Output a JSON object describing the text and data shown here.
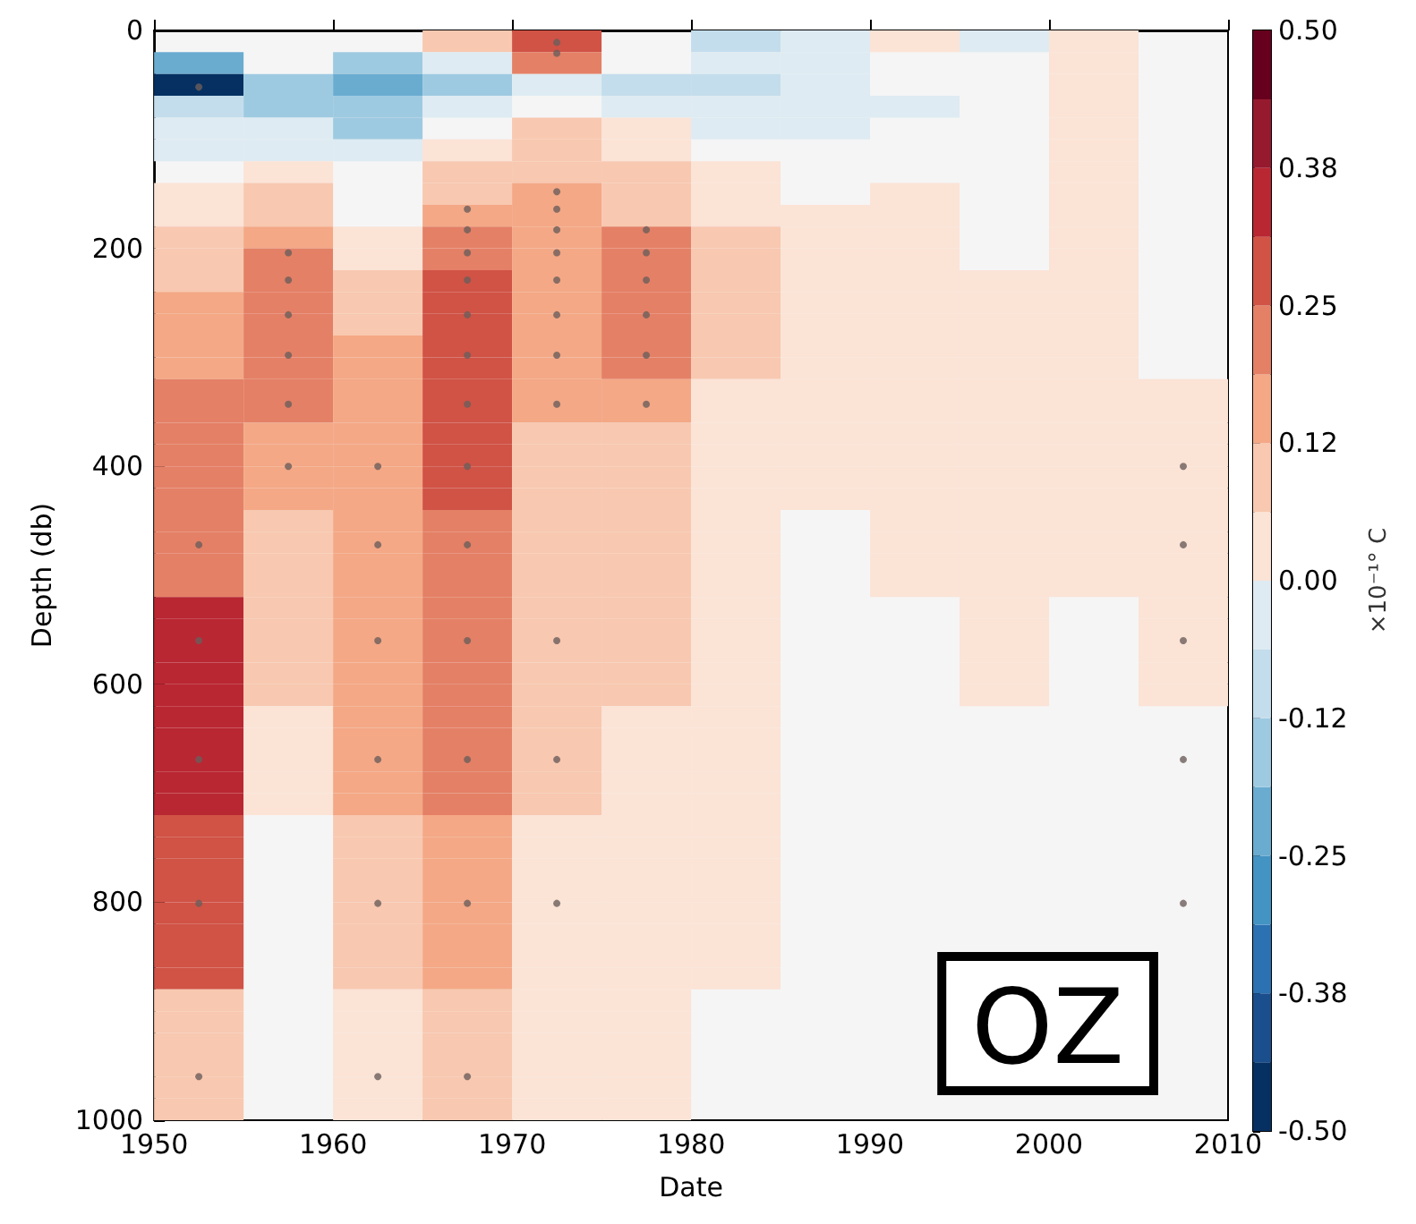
{
  "chart_data": {
    "type": "heatmap",
    "xlabel": "Date",
    "ylabel": "Depth (db)",
    "clabel": "×10⁻¹° C",
    "annotations": [
      "OZ"
    ],
    "x": [
      1952.5,
      1957.5,
      1962.5,
      1967.5,
      1972.5,
      1977.5,
      1982.5,
      1987.5,
      1992.5,
      1997.5,
      2002.5,
      2007.5
    ],
    "xlim": [
      1950,
      2010
    ],
    "xticks": [
      1950,
      1960,
      1970,
      1980,
      1990,
      2000,
      2010
    ],
    "ylim": [
      1000,
      0
    ],
    "yticks": [
      0,
      200,
      400,
      600,
      800,
      1000
    ],
    "clim": [
      -0.5,
      0.5
    ],
    "cticks": [
      {
        "value": -0.5,
        "label": "-0.50"
      },
      {
        "value": -0.375,
        "label": "-0.38"
      },
      {
        "value": -0.25,
        "label": "-0.25"
      },
      {
        "value": -0.125,
        "label": "-0.12"
      },
      {
        "value": 0,
        "label": "0.00"
      },
      {
        "value": 0.125,
        "label": "0.12"
      },
      {
        "value": 0.25,
        "label": "0.25"
      },
      {
        "value": 0.375,
        "label": "0.38"
      },
      {
        "value": 0.5,
        "label": "0.50"
      }
    ],
    "marker": "circle",
    "cells": [
      [
        null,
        null,
        null,
        0.09,
        0.28,
        null,
        -0.09,
        -0.03,
        0.03,
        -0.03,
        0.03,
        null
      ],
      [
        -0.22,
        null,
        -0.16,
        -0.03,
        0.22,
        null,
        -0.03,
        -0.03,
        null,
        null,
        0.03,
        null
      ],
      [
        -0.47,
        -0.16,
        -0.22,
        -0.16,
        -0.03,
        -0.09,
        -0.09,
        -0.03,
        null,
        null,
        0.03,
        null
      ],
      [
        -0.09,
        -0.16,
        -0.16,
        -0.03,
        null,
        -0.03,
        -0.03,
        -0.03,
        -0.03,
        null,
        0.03,
        null
      ],
      [
        -0.03,
        -0.03,
        -0.16,
        null,
        0.09,
        0.03,
        -0.03,
        -0.03,
        null,
        null,
        0.03,
        null
      ],
      [
        -0.03,
        -0.03,
        -0.03,
        0.03,
        0.09,
        0.03,
        null,
        null,
        null,
        null,
        0.03,
        null
      ],
      [
        null,
        0.03,
        null,
        0.09,
        0.09,
        0.09,
        0.03,
        null,
        null,
        null,
        0.03,
        null
      ],
      [
        0.03,
        0.09,
        null,
        0.09,
        0.16,
        0.09,
        0.03,
        null,
        0.03,
        null,
        0.03,
        null
      ],
      [
        0.03,
        0.09,
        null,
        0.16,
        0.16,
        0.09,
        0.03,
        0.03,
        0.03,
        null,
        0.03,
        null
      ],
      [
        0.09,
        0.16,
        0.03,
        0.22,
        0.16,
        0.22,
        0.09,
        0.03,
        0.03,
        null,
        0.03,
        null
      ],
      [
        0.09,
        0.22,
        0.03,
        0.22,
        0.16,
        0.22,
        0.09,
        0.03,
        0.03,
        null,
        0.03,
        null
      ],
      [
        0.09,
        0.22,
        0.09,
        0.28,
        0.16,
        0.22,
        0.09,
        0.03,
        0.03,
        0.03,
        0.03,
        null
      ],
      [
        0.16,
        0.22,
        0.09,
        0.28,
        0.16,
        0.22,
        0.09,
        0.03,
        0.03,
        0.03,
        0.03,
        null
      ],
      [
        0.16,
        0.22,
        0.09,
        0.28,
        0.16,
        0.22,
        0.09,
        0.03,
        0.03,
        0.03,
        0.03,
        null
      ],
      [
        0.16,
        0.22,
        0.16,
        0.28,
        0.16,
        0.22,
        0.09,
        0.03,
        0.03,
        0.03,
        0.03,
        null
      ],
      [
        0.16,
        0.22,
        0.16,
        0.28,
        0.16,
        0.22,
        0.09,
        0.03,
        0.03,
        0.03,
        0.03,
        null
      ],
      [
        0.22,
        0.22,
        0.16,
        0.28,
        0.16,
        0.16,
        0.03,
        0.03,
        0.03,
        0.03,
        0.03,
        0.03
      ],
      [
        0.22,
        0.22,
        0.16,
        0.28,
        0.16,
        0.16,
        0.03,
        0.03,
        0.03,
        0.03,
        0.03,
        0.03
      ],
      [
        0.22,
        0.16,
        0.16,
        0.28,
        0.09,
        0.09,
        0.03,
        0.03,
        0.03,
        0.03,
        0.03,
        0.03
      ],
      [
        0.22,
        0.16,
        0.16,
        0.28,
        0.09,
        0.09,
        0.03,
        0.03,
        0.03,
        0.03,
        0.03,
        0.03
      ],
      [
        0.22,
        0.16,
        0.16,
        0.28,
        0.09,
        0.09,
        0.03,
        0.03,
        0.03,
        0.03,
        0.03,
        0.03
      ],
      [
        0.22,
        0.16,
        0.16,
        0.28,
        0.09,
        0.09,
        0.03,
        0.03,
        0.03,
        0.03,
        0.03,
        0.03
      ],
      [
        0.22,
        0.09,
        0.16,
        0.22,
        0.09,
        0.09,
        0.03,
        null,
        0.03,
        0.03,
        0.03,
        0.03
      ],
      [
        0.22,
        0.09,
        0.16,
        0.22,
        0.09,
        0.09,
        0.03,
        null,
        0.03,
        0.03,
        0.03,
        0.03
      ],
      [
        0.22,
        0.09,
        0.16,
        0.22,
        0.09,
        0.09,
        0.03,
        null,
        0.03,
        0.03,
        0.03,
        0.03
      ],
      [
        0.22,
        0.09,
        0.16,
        0.22,
        0.09,
        0.09,
        0.03,
        null,
        0.03,
        0.03,
        0.03,
        0.03
      ],
      [
        0.34,
        0.09,
        0.16,
        0.22,
        0.09,
        0.09,
        0.03,
        null,
        null,
        0.03,
        null,
        0.03
      ],
      [
        0.34,
        0.09,
        0.16,
        0.22,
        0.09,
        0.09,
        0.03,
        null,
        null,
        0.03,
        null,
        0.03
      ],
      [
        0.34,
        0.09,
        0.16,
        0.22,
        0.09,
        0.09,
        0.03,
        null,
        null,
        0.03,
        null,
        0.03
      ],
      [
        0.34,
        0.09,
        0.16,
        0.22,
        0.09,
        0.09,
        0.03,
        null,
        null,
        0.03,
        null,
        0.03
      ],
      [
        0.34,
        0.09,
        0.16,
        0.22,
        0.09,
        0.09,
        0.03,
        null,
        null,
        0.03,
        null,
        0.03
      ],
      [
        0.34,
        0.03,
        0.16,
        0.22,
        0.09,
        0.03,
        0.03,
        null,
        null,
        null,
        null,
        null
      ],
      [
        0.34,
        0.03,
        0.16,
        0.22,
        0.09,
        0.03,
        0.03,
        null,
        null,
        null,
        null,
        null
      ],
      [
        0.34,
        0.03,
        0.16,
        0.22,
        0.09,
        0.03,
        0.03,
        null,
        null,
        null,
        null,
        null
      ],
      [
        0.34,
        0.03,
        0.16,
        0.22,
        0.09,
        0.03,
        0.03,
        null,
        null,
        null,
        null,
        null
      ],
      [
        0.34,
        0.03,
        0.16,
        0.22,
        0.09,
        0.03,
        0.03,
        null,
        null,
        null,
        null,
        null
      ],
      [
        0.28,
        null,
        0.09,
        0.16,
        0.03,
        0.03,
        0.03,
        null,
        null,
        null,
        null,
        null
      ],
      [
        0.28,
        null,
        0.09,
        0.16,
        0.03,
        0.03,
        0.03,
        null,
        null,
        null,
        null,
        null
      ],
      [
        0.28,
        null,
        0.09,
        0.16,
        0.03,
        0.03,
        0.03,
        null,
        null,
        null,
        null,
        null
      ],
      [
        0.28,
        null,
        0.09,
        0.16,
        0.03,
        0.03,
        0.03,
        null,
        null,
        null,
        null,
        null
      ],
      [
        0.28,
        null,
        0.09,
        0.16,
        0.03,
        0.03,
        0.03,
        null,
        null,
        null,
        null,
        null
      ],
      [
        0.28,
        null,
        0.09,
        0.16,
        0.03,
        0.03,
        0.03,
        null,
        null,
        null,
        null,
        null
      ],
      [
        0.28,
        null,
        0.09,
        0.16,
        0.03,
        0.03,
        0.03,
        null,
        null,
        null,
        null,
        null
      ],
      [
        0.28,
        null,
        0.09,
        0.16,
        0.03,
        0.03,
        0.03,
        null,
        null,
        null,
        null,
        null
      ],
      [
        0.09,
        null,
        0.03,
        0.09,
        0.03,
        0.03,
        null,
        null,
        null,
        null,
        null,
        null
      ],
      [
        0.09,
        null,
        0.03,
        0.09,
        0.03,
        0.03,
        null,
        null,
        null,
        null,
        null,
        null
      ],
      [
        0.09,
        null,
        0.03,
        0.09,
        0.03,
        0.03,
        null,
        null,
        null,
        null,
        null,
        null
      ],
      [
        0.09,
        null,
        0.03,
        0.09,
        0.03,
        0.03,
        null,
        null,
        null,
        null,
        null,
        null
      ],
      [
        0.09,
        null,
        0.03,
        0.09,
        0.03,
        0.03,
        null,
        null,
        null,
        null,
        null,
        null
      ],
      [
        0.09,
        null,
        0.03,
        0.09,
        0.03,
        0.03,
        null,
        null,
        null,
        null,
        null,
        null
      ]
    ],
    "series": [
      {
        "type": "scatter",
        "color": "#6b5e5b",
        "x": [
          1952.5,
          1952.5,
          1952.5,
          1952.5,
          1952.5,
          1952.5,
          1957.5,
          1957.5,
          1957.5,
          1957.5,
          1957.5,
          1957.5,
          1962.5,
          1962.5,
          1962.5,
          1962.5,
          1962.5,
          1962.5,
          1967.5,
          1967.5,
          1967.5,
          1967.5,
          1967.5,
          1967.5,
          1967.5,
          1967.5,
          1967.5,
          1967.5,
          1967.5,
          1967.5,
          1967.5,
          1972.5,
          1972.5,
          1972.5,
          1972.5,
          1972.5,
          1972.5,
          1972.5,
          1972.5,
          1972.5,
          1972.5,
          1972.5,
          1972.5,
          1972.5,
          1977.5,
          1977.5,
          1977.5,
          1977.5,
          1977.5,
          1977.5,
          2007.5,
          2007.5,
          2007.5,
          2007.5,
          2007.5
        ],
        "values": [
          52,
          472,
          560,
          669,
          801,
          960,
          204,
          229,
          261,
          298,
          343,
          400,
          400,
          472,
          560,
          669,
          801,
          960,
          164,
          183,
          204,
          229,
          261,
          298,
          343,
          400,
          472,
          560,
          669,
          801,
          960,
          11,
          21,
          148,
          164,
          183,
          204,
          229,
          261,
          298,
          343,
          560,
          669,
          801,
          183,
          204,
          229,
          261,
          298,
          343,
          400,
          472,
          560,
          669,
          801
        ]
      }
    ]
  }
}
